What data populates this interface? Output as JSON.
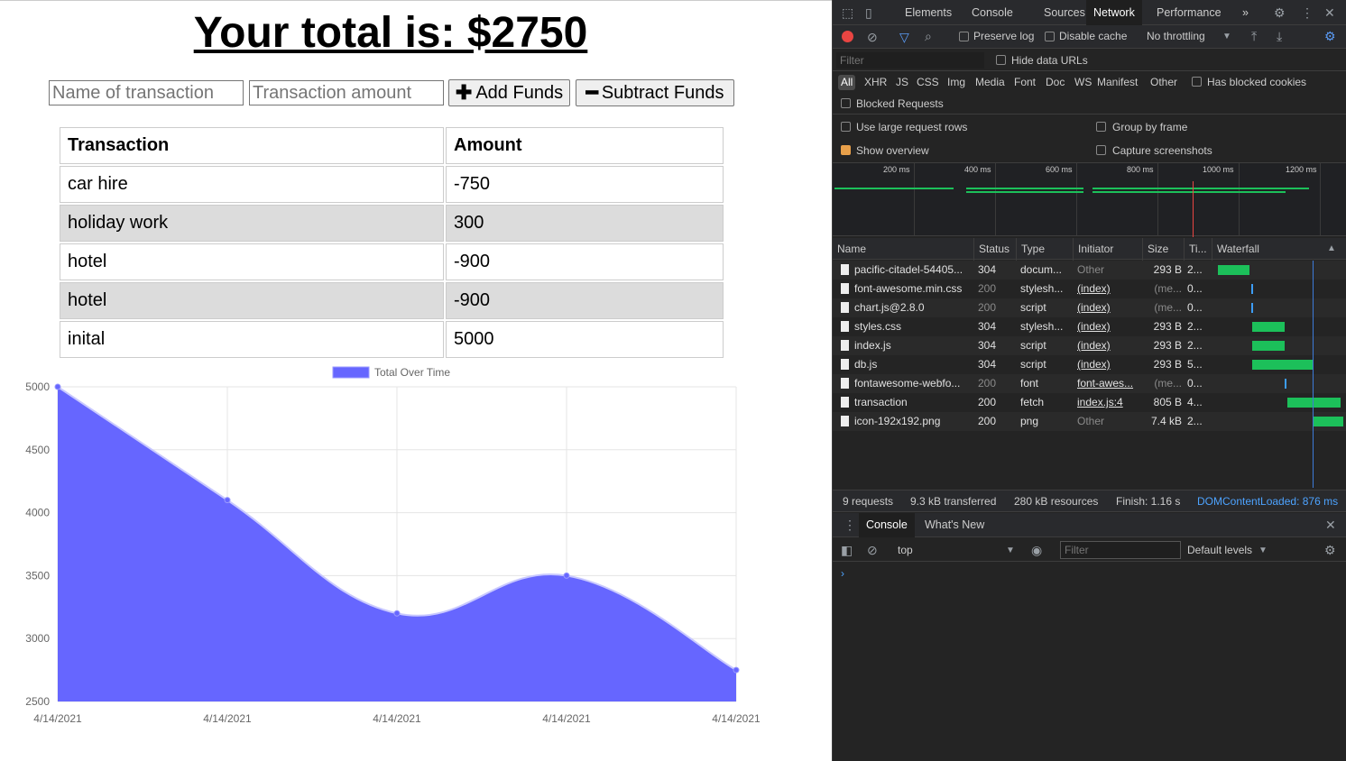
{
  "app": {
    "total_title": "Your total is: $2750",
    "name_placeholder": "Name of transaction",
    "amount_placeholder": "Transaction amount",
    "add_label": "Add Funds",
    "subtract_label": "Subtract Funds",
    "table": {
      "headers": [
        "Transaction",
        "Amount"
      ],
      "rows": [
        {
          "name": "car hire",
          "amount": "-750"
        },
        {
          "name": "holiday work",
          "amount": "300"
        },
        {
          "name": "hotel",
          "amount": "-900"
        },
        {
          "name": "hotel",
          "amount": "-900"
        },
        {
          "name": "inital",
          "amount": "5000"
        }
      ]
    }
  },
  "chart_data": {
    "type": "area",
    "categories": [
      "4/14/2021",
      "4/14/2021",
      "4/14/2021",
      "4/14/2021",
      "4/14/2021"
    ],
    "series": [
      {
        "name": "Total Over Time",
        "values": [
          5000,
          4100,
          3200,
          3500,
          2750
        ],
        "color": "#6666ff"
      }
    ],
    "ylim": [
      2500,
      5000
    ],
    "yticks": [
      2500,
      3000,
      3500,
      4000,
      4500,
      5000
    ],
    "grid": true,
    "legend": "top"
  },
  "devtools": {
    "tabs": [
      "Elements",
      "Console",
      "Sources",
      "Network",
      "Performance"
    ],
    "active_tab": "Network",
    "more_tabs": "»",
    "toolbar": {
      "preserve_log": "Preserve log",
      "disable_cache": "Disable cache",
      "throttling": "No throttling"
    },
    "filter_placeholder": "Filter",
    "hide_data_urls": "Hide data URLs",
    "types": [
      "All",
      "XHR",
      "JS",
      "CSS",
      "Img",
      "Media",
      "Font",
      "Doc",
      "WS",
      "Manifest",
      "Other"
    ],
    "has_blocked_cookies": "Has blocked cookies",
    "blocked_requests": "Blocked Requests",
    "large_rows": "Use large request rows",
    "group_by_frame": "Group by frame",
    "show_overview": "Show overview",
    "capture_screenshots": "Capture screenshots",
    "overview_ticks": [
      "200 ms",
      "400 ms",
      "600 ms",
      "800 ms",
      "1000 ms",
      "1200 ms"
    ],
    "columns": [
      "Name",
      "Status",
      "Type",
      "Initiator",
      "Size",
      "Ti...",
      "Waterfall"
    ],
    "requests": [
      {
        "name": "pacific-citadel-54405...",
        "status": "304",
        "type": "docum...",
        "initiator": "Other",
        "size": "293 B",
        "time": "2...",
        "wf_start": 0.02,
        "wf_end": 0.27
      },
      {
        "name": "font-awesome.min.css",
        "status": "200",
        "type": "stylesh...",
        "initiator": "(index)",
        "size": "(me...",
        "time": "0...",
        "wf_start": 0.28,
        "wf_end": 0.29
      },
      {
        "name": "chart.js@2.8.0",
        "status": "200",
        "type": "script",
        "initiator": "(index)",
        "size": "(me...",
        "time": "0...",
        "wf_start": 0.28,
        "wf_end": 0.29
      },
      {
        "name": "styles.css",
        "status": "304",
        "type": "stylesh...",
        "initiator": "(index)",
        "size": "293 B",
        "time": "2...",
        "wf_start": 0.29,
        "wf_end": 0.54
      },
      {
        "name": "index.js",
        "status": "304",
        "type": "script",
        "initiator": "(index)",
        "size": "293 B",
        "time": "2...",
        "wf_start": 0.29,
        "wf_end": 0.54
      },
      {
        "name": "db.js",
        "status": "304",
        "type": "script",
        "initiator": "(index)",
        "size": "293 B",
        "time": "5...",
        "wf_start": 0.29,
        "wf_end": 0.77
      },
      {
        "name": "fontawesome-webfo...",
        "status": "200",
        "type": "font",
        "initiator": "font-awes...",
        "size": "(me...",
        "time": "0...",
        "wf_start": 0.54,
        "wf_end": 0.55
      },
      {
        "name": "transaction",
        "status": "200",
        "type": "fetch",
        "initiator": "index.js:4",
        "size": "805 B",
        "time": "4...",
        "wf_start": 0.56,
        "wf_end": 0.98
      },
      {
        "name": "icon-192x192.png",
        "status": "200",
        "type": "png",
        "initiator": "Other",
        "size": "7.4 kB",
        "time": "2...",
        "wf_start": 0.77,
        "wf_end": 1.0
      }
    ],
    "summary": {
      "requests": "9 requests",
      "transferred": "9.3 kB transferred",
      "resources": "280 kB resources",
      "finish": "Finish: 1.16 s",
      "dcl": "DOMContentLoaded: 876 ms"
    },
    "drawer_tabs": [
      "Console",
      "What's New"
    ],
    "console": {
      "context": "top",
      "filter_placeholder": "Filter",
      "levels": "Default levels"
    },
    "colors": {
      "accent": "#1a73e8",
      "waterfall_green": "#1cc05a",
      "dcl_blue": "#3d7bd9"
    }
  }
}
